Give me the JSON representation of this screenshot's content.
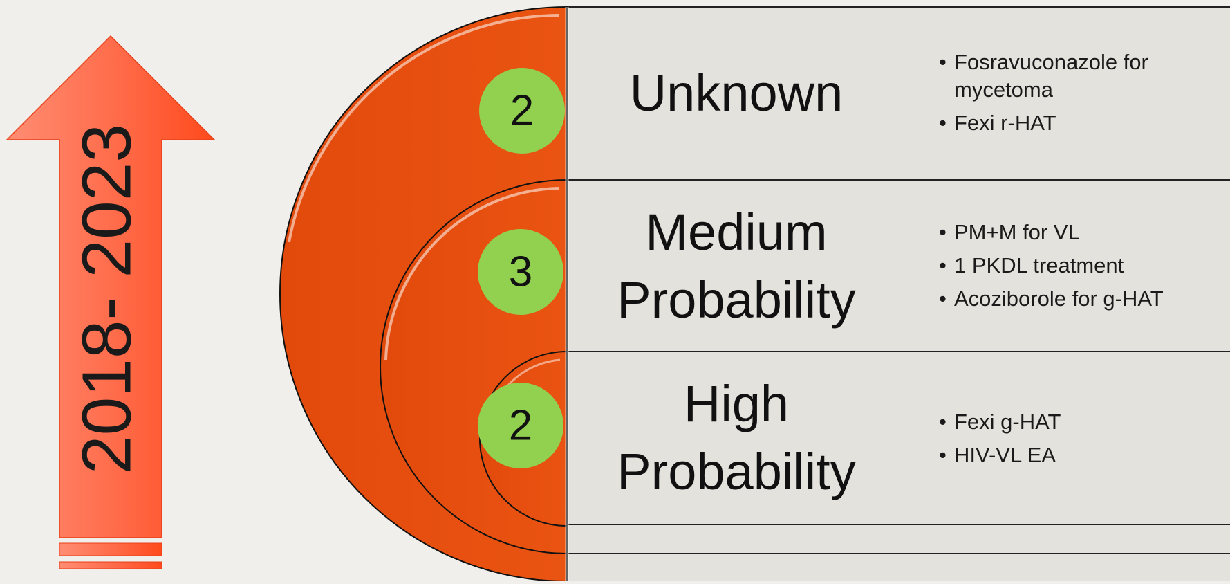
{
  "period_label": "2018- 2023",
  "rows": [
    {
      "label_lines": [
        "Unknown"
      ],
      "count": "2",
      "items": [
        "Fosravuconazole for mycetoma",
        "Fexi r-HAT"
      ]
    },
    {
      "label_lines": [
        "Medium",
        "Probability"
      ],
      "count": "3",
      "items": [
        "PM+M  for VL",
        "1 PKDL treatment",
        "Acoziborole for g-HAT"
      ]
    },
    {
      "label_lines": [
        "High",
        "Probability"
      ],
      "count": "2",
      "items": [
        "Fexi g-HAT",
        "HIV-VL EA"
      ]
    }
  ],
  "colors": {
    "background": "#f0efeb",
    "panel": "#e4e2dc",
    "half_disc": "#e8500f",
    "badge": "#92d050",
    "arrow_light": "#ff8a6e",
    "arrow_dark": "#ff4e1f"
  }
}
